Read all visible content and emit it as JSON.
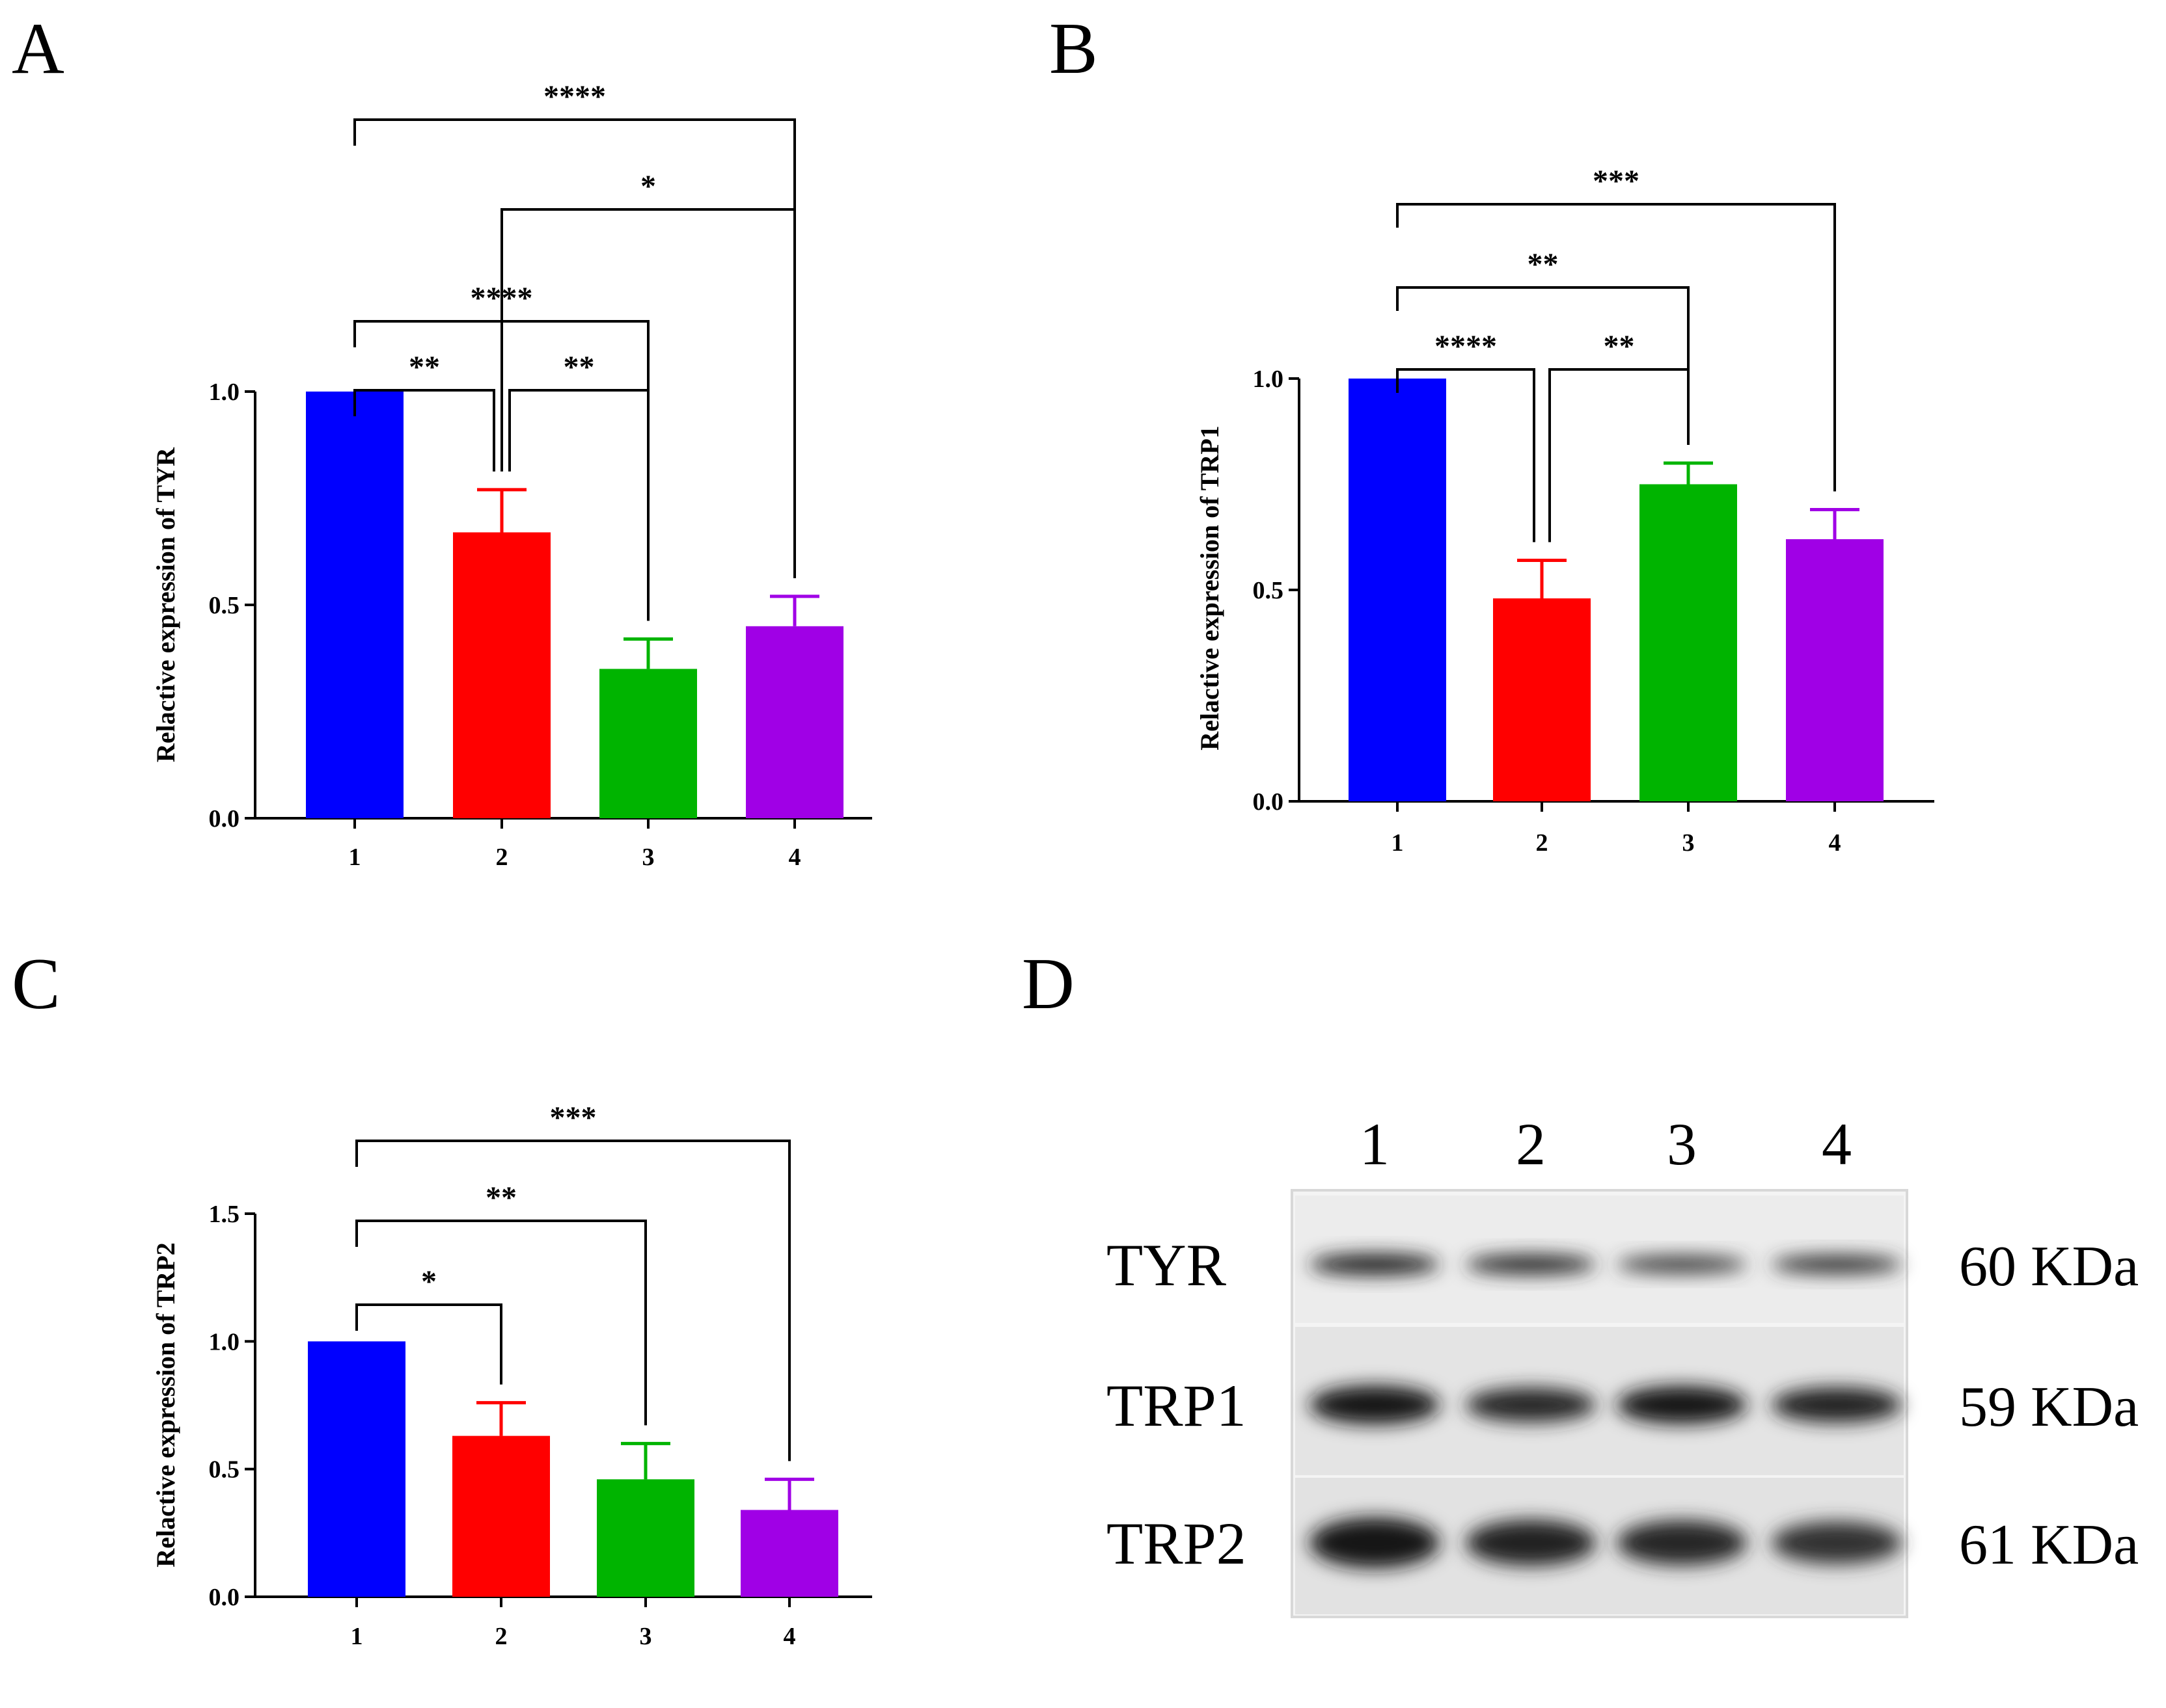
{
  "chart_data": [
    {
      "panel": "A",
      "type": "bar",
      "categories": [
        "1",
        "2",
        "3",
        "4"
      ],
      "values": [
        1.0,
        0.67,
        0.35,
        0.45
      ],
      "errors": [
        0.0,
        0.1,
        0.07,
        0.07
      ],
      "colors": [
        "#0000ff",
        "#ff0000",
        "#00b400",
        "#a000e6"
      ],
      "ylabel": "Relactive expression of TYR",
      "ylim": [
        0,
        1.0
      ],
      "yticks": [
        0.0,
        0.5,
        1.0
      ],
      "ytick_labels": [
        "0.0",
        "0.5",
        "1.0"
      ],
      "significance": [
        {
          "from": 1,
          "to": 2,
          "label": "**"
        },
        {
          "from": 2,
          "to": 3,
          "label": "**"
        },
        {
          "from": 1,
          "to": 3,
          "label": "****"
        },
        {
          "from": 2,
          "to": 4,
          "label": "*"
        },
        {
          "from": 1,
          "to": 4,
          "label": "****"
        }
      ]
    },
    {
      "panel": "B",
      "type": "bar",
      "categories": [
        "1",
        "2",
        "3",
        "4"
      ],
      "values": [
        1.0,
        0.48,
        0.75,
        0.62
      ],
      "errors": [
        0.0,
        0.09,
        0.05,
        0.07
      ],
      "colors": [
        "#0000ff",
        "#ff0000",
        "#00b400",
        "#a000e6"
      ],
      "ylabel": "Relactive expression of TRP1",
      "ylim": [
        0,
        1.0
      ],
      "yticks": [
        0.0,
        0.5,
        1.0
      ],
      "ytick_labels": [
        "0.0",
        "0.5",
        "1.0"
      ],
      "significance": [
        {
          "from": 1,
          "to": 2,
          "label": "****"
        },
        {
          "from": 2,
          "to": 3,
          "label": "**"
        },
        {
          "from": 1,
          "to": 3,
          "label": "**"
        },
        {
          "from": 1,
          "to": 4,
          "label": "***"
        }
      ]
    },
    {
      "panel": "C",
      "type": "bar",
      "categories": [
        "1",
        "2",
        "3",
        "4"
      ],
      "values": [
        1.0,
        0.63,
        0.46,
        0.34
      ],
      "errors": [
        0.0,
        0.13,
        0.14,
        0.12
      ],
      "colors": [
        "#0000ff",
        "#ff0000",
        "#00b400",
        "#a000e6"
      ],
      "ylabel": "Relactive expression of TRP2",
      "ylim": [
        0,
        1.5
      ],
      "yticks": [
        0.0,
        0.5,
        1.0,
        1.5
      ],
      "ytick_labels": [
        "0.0",
        "0.5",
        "1.0",
        "1.5"
      ],
      "significance": [
        {
          "from": 1,
          "to": 2,
          "label": "*"
        },
        {
          "from": 1,
          "to": 3,
          "label": "**"
        },
        {
          "from": 1,
          "to": 4,
          "label": "***"
        }
      ]
    }
  ],
  "western_blot": {
    "panel": "D",
    "lanes": [
      "1",
      "2",
      "3",
      "4"
    ],
    "bands": [
      {
        "protein": "TYR",
        "size": "60 KDa",
        "intensities": [
          0.85,
          0.7,
          0.5,
          0.6
        ]
      },
      {
        "protein": "TRP1",
        "size": "59 KDa",
        "intensities": [
          1.0,
          0.75,
          0.95,
          0.8
        ]
      },
      {
        "protein": "TRP2",
        "size": "61 KDa",
        "intensities": [
          1.0,
          0.8,
          0.75,
          0.65
        ]
      }
    ]
  }
}
